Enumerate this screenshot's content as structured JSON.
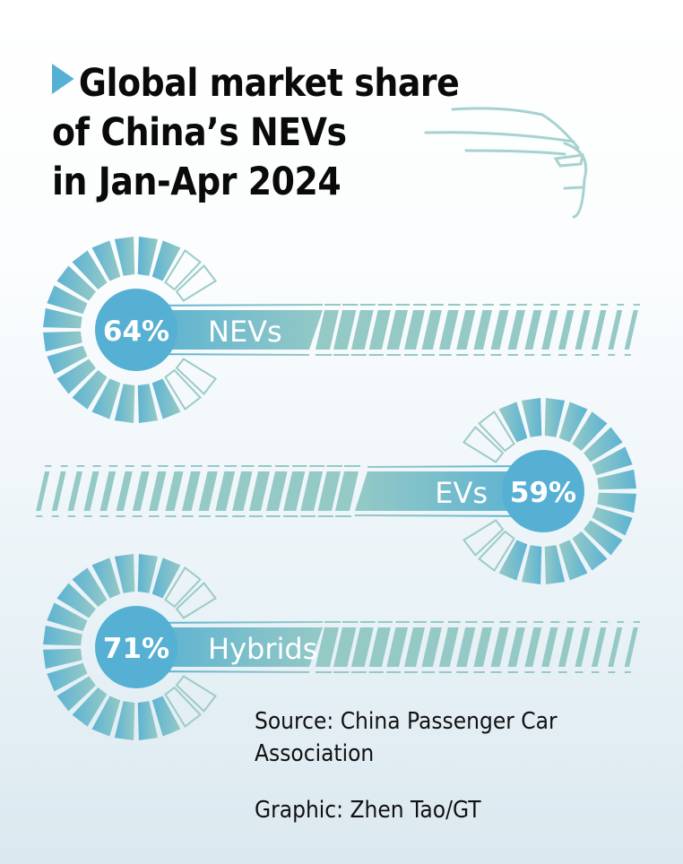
{
  "title": {
    "lines": [
      "Global market share",
      "of China’s NEVs",
      "in Jan-Apr 2024"
    ],
    "marker_icon": "triangle-right-icon"
  },
  "chart_data": {
    "type": "gauge",
    "title": "Global market share of China’s NEVs in Jan-Apr 2024",
    "unit": "%",
    "items": [
      {
        "label": "NEVs",
        "value": 64,
        "value_label": "64%",
        "side": "left"
      },
      {
        "label": "EVs",
        "value": 59,
        "value_label": "59%",
        "side": "right"
      },
      {
        "label": "Hybrids",
        "value": 71,
        "value_label": "71%",
        "side": "left"
      }
    ]
  },
  "footer": {
    "source_line1": "Source: China Passenger Car",
    "source_line2": "Association",
    "credit": "Graphic: Zhen Tao/GT"
  },
  "colors": {
    "accent_blue": "#56b0d3",
    "accent_teal": "#95c9c6",
    "outline": "#9ccbc8",
    "text_dark": "#111111",
    "text_light": "#ffffff"
  }
}
